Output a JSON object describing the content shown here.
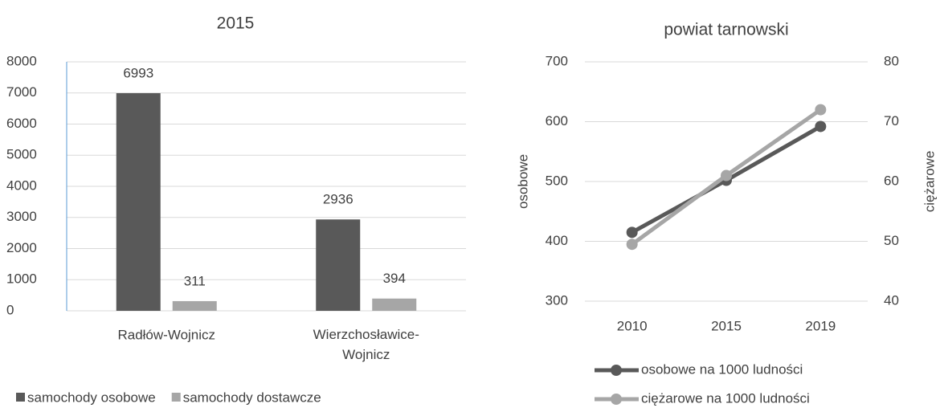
{
  "chart_data": [
    {
      "type": "bar",
      "title": "2015",
      "categories": [
        "Radłów-Wojnicz",
        "Wierzchosławice-Wojnicz"
      ],
      "series": [
        {
          "name": "samochody osobowe",
          "color": "#595959",
          "values": [
            6993,
            2936
          ]
        },
        {
          "name": "samochody dostawcze",
          "color": "#a6a6a6",
          "values": [
            311,
            394
          ]
        }
      ],
      "ylim": [
        0,
        8000
      ],
      "yticks": [
        0,
        1000,
        2000,
        3000,
        4000,
        5000,
        6000,
        7000,
        8000
      ],
      "grid": true,
      "legend": "bottom"
    },
    {
      "type": "line",
      "title": "powiat tarnowski",
      "categories": [
        "2010",
        "2015",
        "2019"
      ],
      "ylabel": "osobowe",
      "y2label": "ciężarowe",
      "series": [
        {
          "name": "osobowe na 1000 ludności",
          "color": "#595959",
          "values": [
            415,
            502,
            592
          ]
        },
        {
          "name": "ciężarowe na 1000 ludności",
          "color": "#a6a6a6",
          "values": [
            49.5,
            61,
            72
          ],
          "axis": "y2"
        }
      ],
      "ylim": [
        300,
        700
      ],
      "yticks": [
        300,
        400,
        500,
        600,
        700
      ],
      "y2lim": [
        40,
        80
      ],
      "y2ticks": [
        40,
        50,
        60,
        70,
        80
      ],
      "grid": true,
      "legend": "bottom"
    }
  ]
}
